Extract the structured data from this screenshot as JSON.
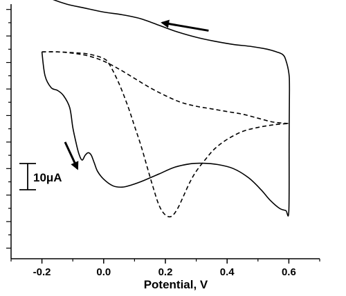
{
  "chart_data": {
    "type": "line",
    "title": "",
    "xlabel": "Potential, V",
    "ylabel": "",
    "xlim": [
      -0.3,
      0.7
    ],
    "ylim": [
      -54,
      42
    ],
    "x_ticks": [
      "-0.2",
      "0.0",
      "0.2",
      "0.4",
      "0.6"
    ],
    "x_tick_values": [
      -0.2,
      0.0,
      0.2,
      0.4,
      0.6
    ],
    "y_axis_ticks": "unlabeled",
    "grid": false,
    "legend": "none",
    "scale_bar": {
      "label": "10μA",
      "value": 10
    },
    "series": [
      {
        "style": "solid",
        "color": "#000000",
        "x": [
          -0.2,
          -0.19,
          -0.17,
          -0.15,
          -0.13,
          -0.11,
          -0.1,
          -0.09,
          -0.08,
          -0.07,
          -0.06,
          -0.05,
          -0.04,
          -0.03,
          -0.02,
          0.0,
          0.03,
          0.06,
          0.09,
          0.13,
          0.18,
          0.23,
          0.28,
          0.32,
          0.37,
          0.42,
          0.47,
          0.51,
          0.54,
          0.57,
          0.59,
          0.6,
          0.601,
          0.602,
          0.6,
          0.59,
          0.58,
          0.56,
          0.53,
          0.48,
          0.42,
          0.36,
          0.3,
          0.24,
          0.18,
          0.12,
          0.06,
          0.0,
          -0.06,
          -0.12,
          -0.18,
          -0.2
        ],
        "y": [
          24.0,
          15.0,
          10.5,
          9.5,
          7.5,
          3.0,
          -4.5,
          -10.0,
          -14.5,
          -16.8,
          -15.0,
          -14.0,
          -15.0,
          -18.0,
          -21.0,
          -24.0,
          -26.5,
          -27.0,
          -26.2,
          -24.5,
          -22.0,
          -19.5,
          -18.2,
          -18.0,
          -18.5,
          -20.0,
          -23.5,
          -28.0,
          -32.0,
          -35.0,
          -35.8,
          -36.0,
          -10.0,
          10.0,
          16.0,
          21.0,
          23.0,
          24.0,
          25.0,
          26.0,
          26.8,
          28.0,
          29.5,
          31.5,
          34.0,
          36.5,
          38.0,
          39.0,
          40.5,
          42.0,
          44.5,
          46.0
        ]
      },
      {
        "style": "dashed",
        "color": "#000000",
        "x": [
          -0.2,
          -0.15,
          -0.1,
          -0.05,
          0.0,
          0.02,
          0.05,
          0.08,
          0.1,
          0.12,
          0.14,
          0.16,
          0.18,
          0.2,
          0.22,
          0.24,
          0.26,
          0.28,
          0.3,
          0.33,
          0.36,
          0.4,
          0.45,
          0.5,
          0.55,
          0.6
        ],
        "y": [
          24.0,
          24.0,
          23.7,
          23.2,
          21.5,
          19.0,
          12.0,
          3.0,
          -4.0,
          -11.0,
          -19.0,
          -27.0,
          -34.0,
          -37.5,
          -38.0,
          -35.0,
          -30.0,
          -25.0,
          -21.0,
          -16.5,
          -12.5,
          -9.0,
          -6.0,
          -4.5,
          -3.5,
          -3.0
        ]
      },
      {
        "style": "dashed",
        "color": "#000000",
        "x": [
          -0.2,
          -0.15,
          -0.1,
          -0.05,
          0.0,
          0.05,
          0.1,
          0.15,
          0.2,
          0.25,
          0.3,
          0.35,
          0.4,
          0.45,
          0.5,
          0.55,
          0.6
        ],
        "y": [
          24.0,
          24.0,
          23.5,
          22.5,
          20.5,
          17.5,
          14.0,
          10.5,
          7.5,
          5.0,
          3.5,
          2.5,
          1.5,
          0.5,
          -1.0,
          -2.5,
          -3.0
        ]
      }
    ],
    "arrows": [
      {
        "direction": "up-left",
        "from": [
          0.34,
          32.0
        ],
        "to": [
          0.19,
          35.0
        ]
      },
      {
        "direction": "down",
        "from": [
          -0.125,
          -10.0
        ],
        "to": [
          -0.085,
          -20.0
        ]
      }
    ]
  }
}
